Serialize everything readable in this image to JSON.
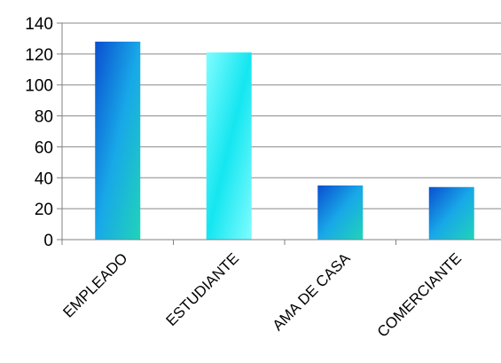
{
  "chart_data": {
    "type": "bar",
    "categories": [
      "EMPLEADO",
      "ESTUDIANTE",
      "AMA DE CASA",
      "COMERCIANTE"
    ],
    "values": [
      128,
      121,
      35,
      34
    ],
    "ylim": [
      0,
      140
    ],
    "yticks": [
      0,
      20,
      40,
      60,
      80,
      100,
      120,
      140
    ],
    "grid": true,
    "legend": "none",
    "colors": {
      "gradient_blue_dark": "#0a4fd0",
      "gradient_blue_mid": "#18a8e8",
      "gradient_teal": "#20d4b8",
      "gradient_cyan_light": "#7ffcff",
      "gradient_cyan": "#14e6f0",
      "gridline": "#888888",
      "axis": "#808080"
    },
    "bar_styles": [
      "blue",
      "cyan",
      "blue",
      "blue"
    ]
  }
}
